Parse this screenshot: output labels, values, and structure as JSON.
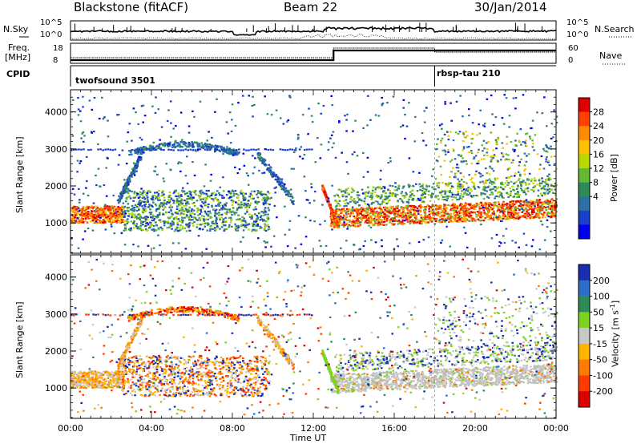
{
  "header": {
    "station": "Blackstone (fitACF)",
    "beam": "Beam 22",
    "date": "30/Jan/2014"
  },
  "panels": {
    "nsky_label": "N.Sky",
    "nsearch_label": "N.Search",
    "nsky_ticks": [
      "10^5",
      "10^0"
    ],
    "nsky_right_ticks": [
      "10^5",
      "10^0"
    ],
    "freq_label": "Freq.",
    "freq_unit": "[MHz]",
    "freq_ticks": [
      "18",
      "8"
    ],
    "nave_label": "Nave",
    "nave_ticks": [
      "60",
      "0"
    ],
    "cpid_label": "CPID",
    "cpid_segments": [
      {
        "name": "twofsound 3501",
        "start_hour": 0,
        "end_hour": 18
      },
      {
        "name": "rbsp-tau 210",
        "start_hour": 18,
        "end_hour": 24
      }
    ]
  },
  "chart_data": [
    {
      "type": "heatmap",
      "name": "Power",
      "ylabel": "Slant Range [km]",
      "yticks": [
        1000,
        2000,
        3000,
        4000
      ],
      "ylim": [
        180,
        4600
      ],
      "xlim": [
        0,
        24
      ],
      "colorbar": {
        "label": "Power [dB]",
        "ticks": [
          "28",
          "24",
          "20",
          "16",
          "12",
          "8",
          "4"
        ],
        "colors": [
          "#dd0000",
          "#ff4000",
          "#ff8c00",
          "#ffc000",
          "#b8d800",
          "#66b833",
          "#2e8b57",
          "#2f6fa8",
          "#1a3fc8",
          "#0000ee"
        ]
      },
      "features": [
        {
          "desc": "near-range band",
          "hours": [
            0,
            2.5
          ],
          "range_km": [
            1150,
            1550
          ],
          "level": "high"
        },
        {
          "desc": "arc",
          "hours": [
            2.5,
            9.8
          ],
          "range_km": [
            700,
            1800
          ],
          "level": "low"
        },
        {
          "desc": "descending streak",
          "hours": [
            12.5,
            13.2
          ],
          "range_km": [
            900,
            2000
          ],
          "level": "high"
        },
        {
          "desc": "main echo band",
          "hours": [
            13,
            24
          ],
          "range_km": [
            900,
            1750
          ],
          "level": "high"
        }
      ]
    },
    {
      "type": "heatmap",
      "name": "Velocity",
      "ylabel": "Slant Range [km]",
      "yticks": [
        1000,
        2000,
        3000,
        4000
      ],
      "ylim": [
        180,
        4600
      ],
      "xlim": [
        0,
        24
      ],
      "colorbar": {
        "label": "Velocity [m s",
        "label_exp": "-1",
        "label_close": "]",
        "ticks": [
          "200",
          "100",
          "50",
          "15",
          "-15",
          "-50",
          "-100",
          "-200"
        ],
        "colors": [
          "#1a2fb0",
          "#2e6ec8",
          "#2e8b57",
          "#7ed321",
          "#c8c8c8",
          "#ffb400",
          "#ff7a00",
          "#ff3b00",
          "#dd0000"
        ]
      }
    }
  ],
  "xaxis": {
    "label": "Time UT",
    "ticks": [
      "00:00",
      "04:00",
      "08:00",
      "12:00",
      "16:00",
      "20:00",
      "00:00"
    ]
  }
}
